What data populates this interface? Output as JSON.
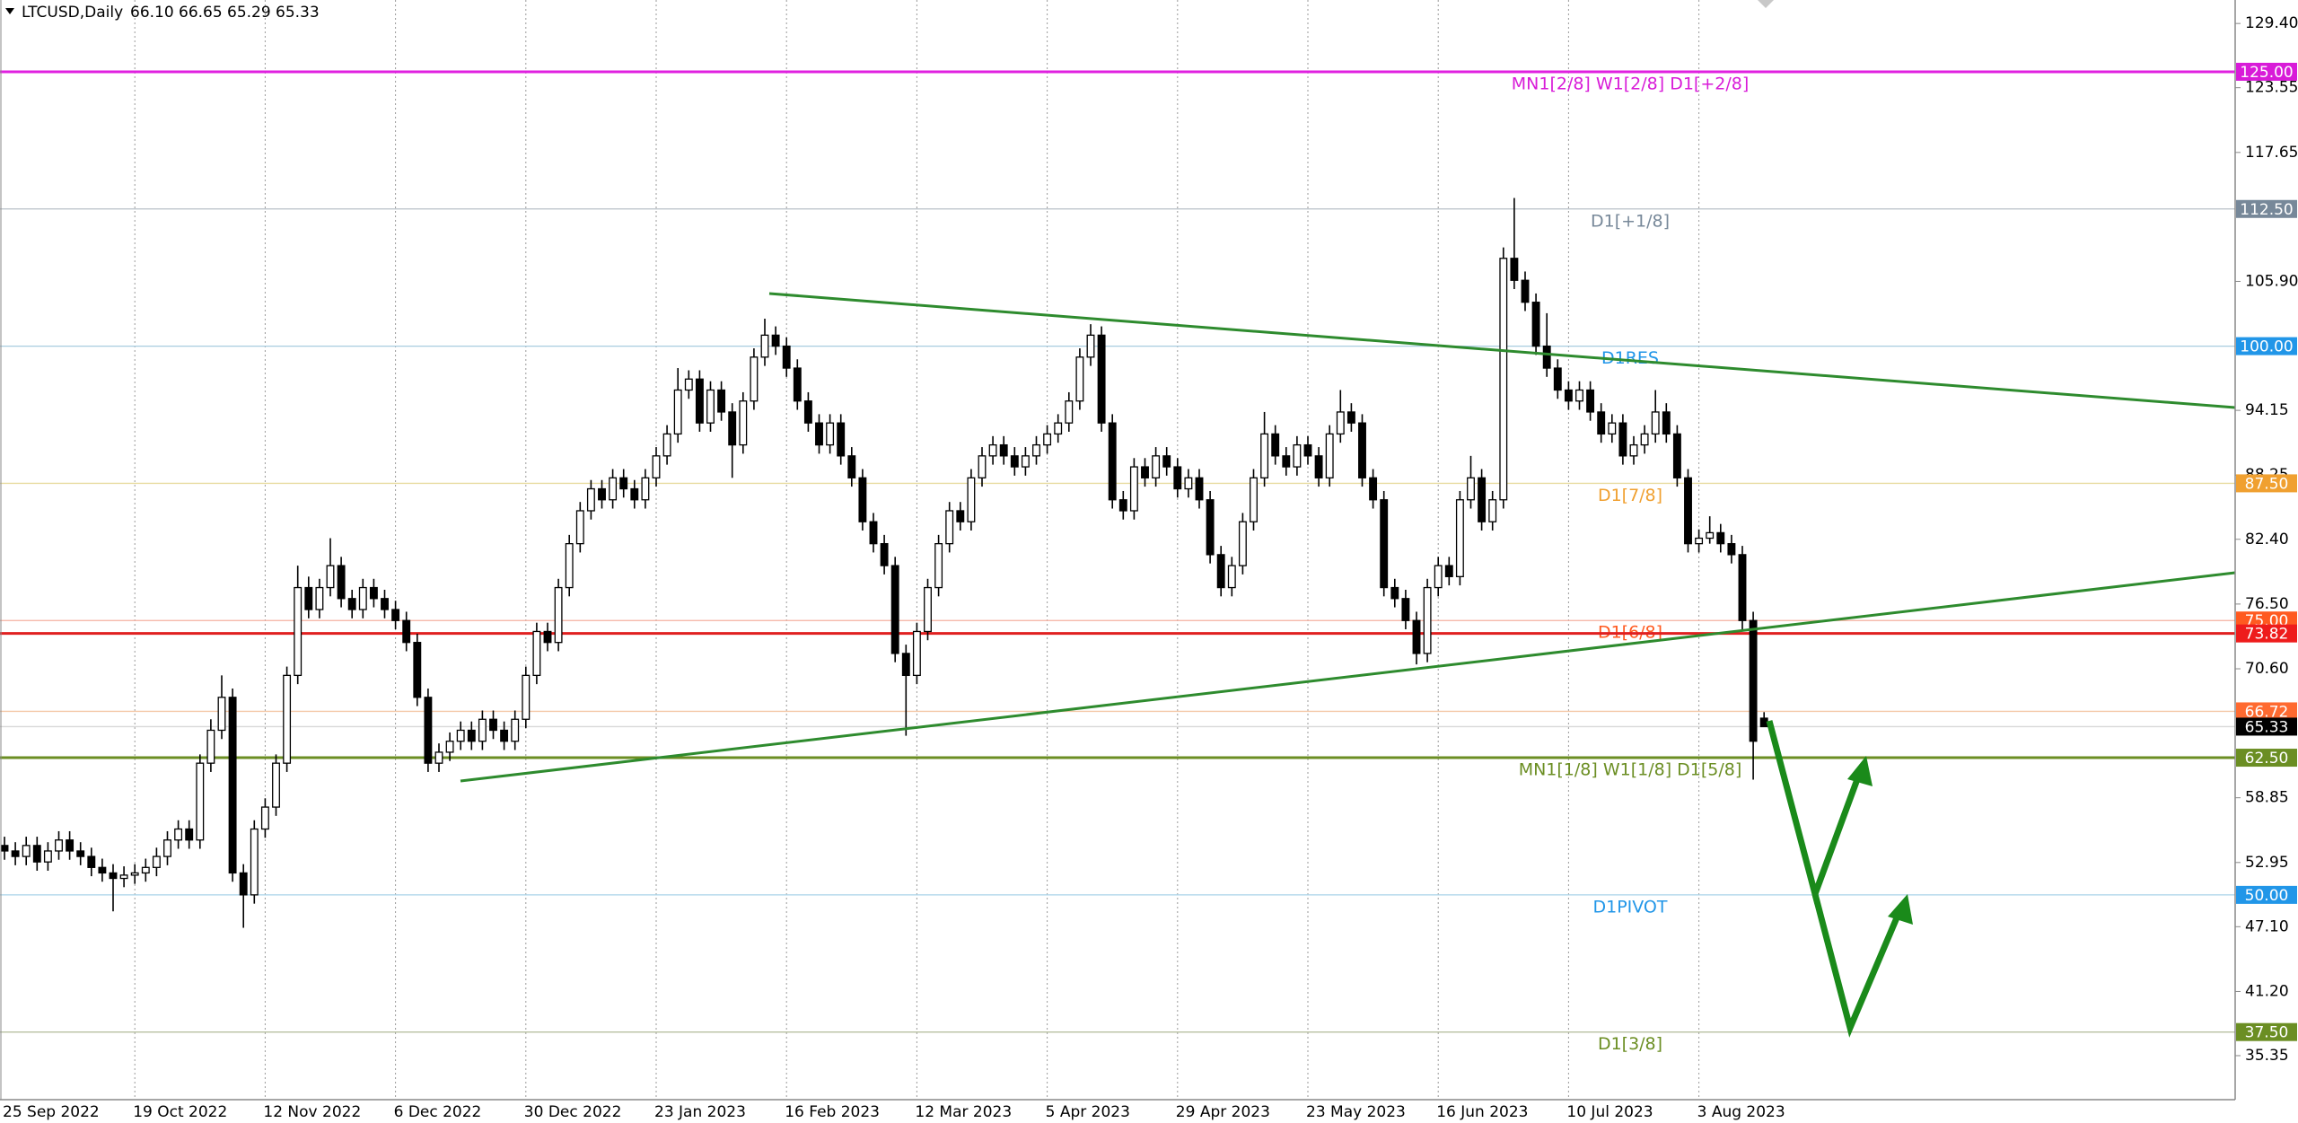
{
  "chart_data": {
    "type": "candlestick",
    "title": "LTCUSD,Daily",
    "last_labels": [
      "66.10",
      "66.65",
      "65.29",
      "65.33"
    ],
    "ylim": [
      31.34,
      131.54
    ],
    "yticks": [
      {
        "value": 129.4,
        "label": "129.40"
      },
      123.55,
      117.65,
      {
        "value": 105.9,
        "label": "105.90"
      },
      94.15,
      88.25,
      {
        "value": 82.4,
        "label": "82.40"
      },
      {
        "value": 76.5,
        "label": "76.50"
      },
      {
        "value": 70.6,
        "label": "70.60"
      },
      58.85,
      52.95,
      {
        "value": 47.1,
        "label": "47.10"
      },
      {
        "value": 41.2,
        "label": "41.20"
      },
      35.35
    ],
    "xlabels": [
      {
        "index": 0,
        "label": "25 Sep 2022"
      },
      {
        "index": 12,
        "label": "19 Oct 2022"
      },
      {
        "index": 24,
        "label": "12 Nov 2022"
      },
      {
        "index": 36,
        "label": "6 Dec 2022"
      },
      {
        "index": 48,
        "label": "30 Dec 2022"
      },
      {
        "index": 60,
        "label": "23 Jan 2023"
      },
      {
        "index": 72,
        "label": "16 Feb 2023"
      },
      {
        "index": 84,
        "label": "12 Mar 2023"
      },
      {
        "index": 96,
        "label": "5 Apr 2023"
      },
      {
        "index": 108,
        "label": "29 Apr 2023"
      },
      {
        "index": 120,
        "label": "23 May 2023"
      },
      {
        "index": 132,
        "label": "16 Jun 2023"
      },
      {
        "index": 144,
        "label": "10 Jul 2023"
      },
      {
        "index": 156,
        "label": "3 Aug 2023"
      }
    ],
    "grid": true,
    "up_color": "#ffffff",
    "down_color": "#000000",
    "levels": [
      {
        "value": 125,
        "label": "125.00",
        "text": "MN1[2/8] W1[2/8] D1[+2/8]",
        "color": "#d81bd8",
        "line_color": "#e020e0",
        "weight": "bold"
      },
      {
        "value": 112.5,
        "label": "112.50",
        "text": "D1[+1/8]",
        "color": "#778899",
        "line_color": "#b8c0c8",
        "weight": "thin"
      },
      {
        "value": 100,
        "label": "100.00",
        "text": "D1RES",
        "color": "#2196e8",
        "line_color": "#a8cce0",
        "weight": "thin"
      },
      {
        "value": 87.5,
        "label": "87.50",
        "text": "D1[7/8]",
        "color": "#f0a030",
        "line_color": "#e8dca0",
        "weight": "thin"
      },
      {
        "value": 75,
        "label": "75.00",
        "text": "D1[6/8]",
        "color": "#ff5a20",
        "line_color": "#f4b0a0",
        "weight": "thin"
      },
      {
        "value": 73.82,
        "label": "73.82",
        "color": "#ee1c1c",
        "line_color": "#e02020",
        "weight": "bold"
      },
      {
        "value": 66.72,
        "label": "66.72",
        "color": "#ff6a30",
        "line_color": "#f4c8a8",
        "weight": "thin"
      },
      {
        "value": 65.33,
        "label": "65.33",
        "color": "#000000",
        "line_color": "#d8d8d8",
        "weight": "thin"
      },
      {
        "value": 62.5,
        "label": "62.50",
        "text": "MN1[1/8] W1[1/8] D1[5/8]",
        "color": "#6b8e23",
        "line_color": "#6b8e23",
        "weight": "bold"
      },
      {
        "value": 50,
        "label": "50.00",
        "text": "D1PIVOT",
        "color": "#2196e8",
        "line_color": "#a8d4e8",
        "weight": "thin"
      },
      {
        "value": 37.5,
        "label": "37.50",
        "text": "D1[3/8]",
        "color": "#6b8e23",
        "line_color": "#b8c0a0",
        "weight": "thin"
      }
    ],
    "candles": [
      [
        54.5,
        55.3,
        53.2,
        54
      ],
      [
        54,
        54.8,
        52.7,
        53.5
      ],
      [
        53.5,
        55.3,
        52.7,
        54.5
      ],
      [
        54.5,
        55.3,
        52.2,
        53
      ],
      [
        53,
        54.8,
        52.2,
        54
      ],
      [
        54,
        55.8,
        53.2,
        55
      ],
      [
        55,
        55.8,
        53.2,
        54
      ],
      [
        54,
        54.8,
        52.7,
        53.5
      ],
      [
        53.5,
        54.3,
        51.7,
        52.5
      ],
      [
        52.5,
        53.3,
        51.2,
        52
      ],
      [
        52,
        52.8,
        48.5,
        51.5
      ],
      [
        51.5,
        52.6,
        50.7,
        51.8
      ],
      [
        51.8,
        52.8,
        51,
        52
      ],
      [
        52,
        53.3,
        51.2,
        52.5
      ],
      [
        52.5,
        54.3,
        51.7,
        53.5
      ],
      [
        53.5,
        55.8,
        52.7,
        55
      ],
      [
        55,
        56.8,
        54.2,
        56
      ],
      [
        56,
        56.8,
        54.2,
        55
      ],
      [
        55,
        62.8,
        54.2,
        62
      ],
      [
        62,
        66,
        61.2,
        65
      ],
      [
        65,
        70,
        64.2,
        68
      ],
      [
        68,
        68.8,
        51.2,
        52
      ],
      [
        52,
        52.8,
        47,
        50
      ],
      [
        50,
        56.8,
        49.2,
        56
      ],
      [
        56,
        58.8,
        55.2,
        58
      ],
      [
        58,
        62.8,
        57.2,
        62
      ],
      [
        62,
        70.8,
        61.2,
        70
      ],
      [
        70,
        80,
        69.2,
        78
      ],
      [
        78,
        79,
        75.2,
        76
      ],
      [
        76,
        78.8,
        75.2,
        78
      ],
      [
        78,
        82.5,
        77.2,
        80
      ],
      [
        80,
        80.8,
        76.2,
        77
      ],
      [
        77,
        77.8,
        75.2,
        76
      ],
      [
        76,
        78.8,
        75.2,
        78
      ],
      [
        78,
        78.8,
        76.2,
        77
      ],
      [
        77,
        77.8,
        75.2,
        76
      ],
      [
        76,
        76.8,
        74.2,
        75
      ],
      [
        75,
        75.8,
        72.2,
        73
      ],
      [
        73,
        73.8,
        67.2,
        68
      ],
      [
        68,
        68.8,
        61.2,
        62
      ],
      [
        62,
        63.8,
        61.2,
        63
      ],
      [
        63,
        64.8,
        62.2,
        64
      ],
      [
        64,
        65.8,
        63.2,
        65
      ],
      [
        65,
        65.8,
        63.2,
        64
      ],
      [
        64,
        66.8,
        63.2,
        66
      ],
      [
        66,
        66.8,
        64.2,
        65
      ],
      [
        65,
        65.8,
        63.2,
        64
      ],
      [
        64,
        66.8,
        63.2,
        66
      ],
      [
        66,
        70.8,
        65.2,
        70
      ],
      [
        70,
        74.8,
        69.2,
        74
      ],
      [
        74,
        74.8,
        72.2,
        73
      ],
      [
        73,
        78.8,
        72.2,
        78
      ],
      [
        78,
        82.8,
        77.2,
        82
      ],
      [
        82,
        85.8,
        81.2,
        85
      ],
      [
        85,
        87.8,
        84.2,
        87
      ],
      [
        87,
        87.8,
        85.2,
        86
      ],
      [
        86,
        88.8,
        85.2,
        88
      ],
      [
        88,
        88.8,
        86.2,
        87
      ],
      [
        87,
        87.8,
        85.2,
        86
      ],
      [
        86,
        88.8,
        85.2,
        88
      ],
      [
        88,
        90.8,
        87.2,
        90
      ],
      [
        90,
        92.8,
        89.2,
        92
      ],
      [
        92,
        98,
        91.2,
        96
      ],
      [
        96,
        97.8,
        95.2,
        97
      ],
      [
        97,
        97.8,
        92.2,
        93
      ],
      [
        93,
        96.8,
        92.2,
        96
      ],
      [
        96,
        96.8,
        93.2,
        94
      ],
      [
        94,
        94.8,
        88,
        91
      ],
      [
        91,
        95.8,
        90.2,
        95
      ],
      [
        95,
        99.8,
        94.2,
        99
      ],
      [
        99,
        102.5,
        98.2,
        101
      ],
      [
        101,
        101.8,
        99.2,
        100
      ],
      [
        100,
        100.8,
        97.2,
        98
      ],
      [
        98,
        98.8,
        94.2,
        95
      ],
      [
        95,
        95.8,
        92.2,
        93
      ],
      [
        93,
        93.8,
        90.2,
        91
      ],
      [
        91,
        93.8,
        90.2,
        93
      ],
      [
        93,
        93.8,
        89.2,
        90
      ],
      [
        90,
        90.8,
        87.2,
        88
      ],
      [
        88,
        88.8,
        83.2,
        84
      ],
      [
        84,
        84.8,
        81.2,
        82
      ],
      [
        82,
        82.8,
        79.2,
        80
      ],
      [
        80,
        80.8,
        71.2,
        72
      ],
      [
        72,
        72.8,
        64.5,
        70
      ],
      [
        70,
        74.8,
        69.2,
        74
      ],
      [
        74,
        78.8,
        73.2,
        78
      ],
      [
        78,
        82.8,
        77.2,
        82
      ],
      [
        82,
        85.8,
        81.2,
        85
      ],
      [
        85,
        85.8,
        83.2,
        84
      ],
      [
        84,
        88.8,
        83.2,
        88
      ],
      [
        88,
        90.8,
        87.2,
        90
      ],
      [
        90,
        91.8,
        89.2,
        91
      ],
      [
        91,
        91.8,
        89.2,
        90
      ],
      [
        90,
        90.8,
        88.2,
        89
      ],
      [
        89,
        90.8,
        88.2,
        90
      ],
      [
        90,
        91.8,
        89.2,
        91
      ],
      [
        91,
        92.8,
        90.2,
        92
      ],
      [
        92,
        93.8,
        91.2,
        93
      ],
      [
        93,
        95.8,
        92.2,
        95
      ],
      [
        95,
        99.8,
        94.2,
        99
      ],
      [
        99,
        102,
        98.2,
        101
      ],
      [
        101,
        101.8,
        92.2,
        93
      ],
      [
        93,
        93.8,
        85.2,
        86
      ],
      [
        86,
        86.8,
        84.2,
        85
      ],
      [
        85,
        89.8,
        84.2,
        89
      ],
      [
        89,
        89.8,
        87.2,
        88
      ],
      [
        88,
        90.8,
        87.2,
        90
      ],
      [
        90,
        90.8,
        88.2,
        89
      ],
      [
        89,
        89.8,
        86.2,
        87
      ],
      [
        87,
        88.8,
        86.2,
        88
      ],
      [
        88,
        88.8,
        85.2,
        86
      ],
      [
        86,
        86.8,
        80.2,
        81
      ],
      [
        81,
        81.8,
        77.2,
        78
      ],
      [
        78,
        80.8,
        77.2,
        80
      ],
      [
        80,
        84.8,
        79.2,
        84
      ],
      [
        84,
        88.8,
        83.2,
        88
      ],
      [
        88,
        94,
        87.2,
        92
      ],
      [
        92,
        92.8,
        89.2,
        90
      ],
      [
        90,
        90.8,
        88.2,
        89
      ],
      [
        89,
        91.8,
        88.2,
        91
      ],
      [
        91,
        91.8,
        89.2,
        90
      ],
      [
        90,
        90.8,
        87.2,
        88
      ],
      [
        88,
        92.8,
        87.2,
        92
      ],
      [
        92,
        96,
        91.2,
        94
      ],
      [
        94,
        94.8,
        92.2,
        93
      ],
      [
        93,
        93.8,
        87.2,
        88
      ],
      [
        88,
        88.8,
        85.2,
        86
      ],
      [
        86,
        86.8,
        77.2,
        78
      ],
      [
        78,
        78.8,
        76.2,
        77
      ],
      [
        77,
        77.8,
        74.2,
        75
      ],
      [
        75,
        75.8,
        71,
        72
      ],
      [
        72,
        78.8,
        71.2,
        78
      ],
      [
        78,
        80.8,
        77.2,
        80
      ],
      [
        80,
        80.8,
        78.2,
        79
      ],
      [
        79,
        86.8,
        78.2,
        86
      ],
      [
        86,
        90,
        85.2,
        88
      ],
      [
        88,
        88.8,
        83.2,
        84
      ],
      [
        84,
        86.8,
        83.2,
        86
      ],
      [
        86,
        109,
        85.2,
        108
      ],
      [
        108,
        113.5,
        105.2,
        106
      ],
      [
        106,
        106.8,
        103.2,
        104
      ],
      [
        104,
        104.8,
        99.2,
        100
      ],
      [
        100,
        103,
        97.2,
        98
      ],
      [
        98,
        98.8,
        95.2,
        96
      ],
      [
        96,
        96.8,
        94.2,
        95
      ],
      [
        95,
        96.8,
        94.2,
        96
      ],
      [
        96,
        96.8,
        93.2,
        94
      ],
      [
        94,
        94.8,
        91.2,
        92
      ],
      [
        92,
        93.8,
        91.2,
        93
      ],
      [
        93,
        93.8,
        89.2,
        90
      ],
      [
        90,
        91.8,
        89.2,
        91
      ],
      [
        91,
        92.8,
        90.2,
        92
      ],
      [
        92,
        96,
        91.2,
        94
      ],
      [
        94,
        94.8,
        91.2,
        92
      ],
      [
        92,
        92.8,
        87.2,
        88
      ],
      [
        88,
        88.8,
        81.2,
        82
      ],
      [
        82,
        83.3,
        81.2,
        82.5
      ],
      [
        82.5,
        84.5,
        82,
        83
      ],
      [
        83,
        83.8,
        81.2,
        82
      ],
      [
        82,
        82.8,
        80.2,
        81
      ],
      [
        81,
        81.8,
        74.2,
        75
      ],
      [
        75,
        75.8,
        60.5,
        64
      ],
      [
        66.1,
        66.65,
        65.29,
        65.33
      ]
    ]
  }
}
